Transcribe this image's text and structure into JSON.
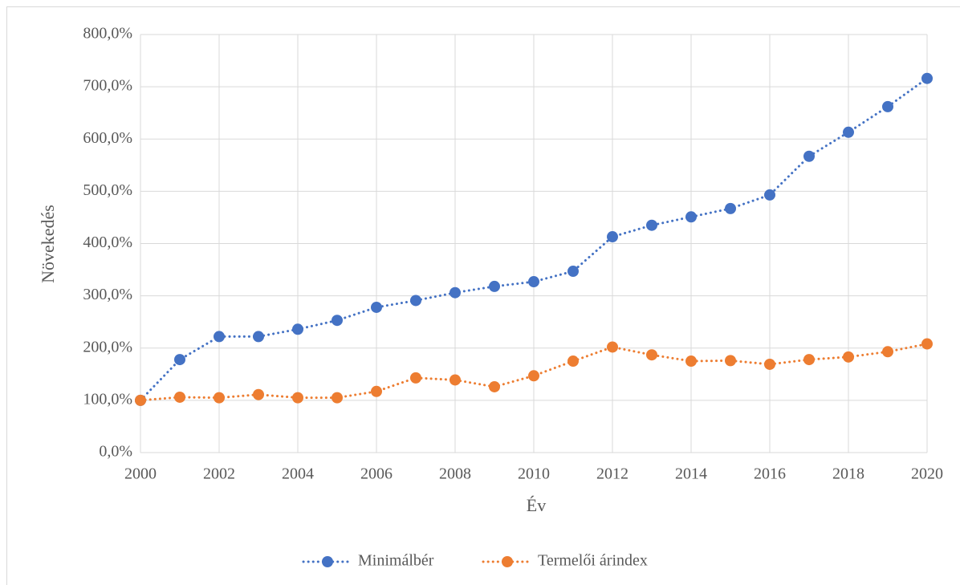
{
  "chart_data": {
    "type": "line",
    "x_label": "Év",
    "y_label": "Növekedés",
    "x": [
      2000,
      2001,
      2002,
      2003,
      2004,
      2005,
      2006,
      2007,
      2008,
      2009,
      2010,
      2011,
      2012,
      2013,
      2014,
      2015,
      2016,
      2017,
      2018,
      2019,
      2020
    ],
    "series": [
      {
        "name": "Minimálbér",
        "color": "#4472c4",
        "values": [
          100,
          178,
          222,
          222,
          236,
          253,
          278,
          291,
          306,
          318,
          327,
          347,
          413,
          435,
          451,
          467,
          493,
          567,
          613,
          662,
          716
        ]
      },
      {
        "name": "Termelői árindex",
        "color": "#ed7d31",
        "values": [
          100,
          106,
          105,
          111,
          105,
          105,
          117,
          143,
          139,
          126,
          147,
          175,
          202,
          187,
          175,
          176,
          169,
          178,
          183,
          193,
          208
        ]
      }
    ],
    "xlim": [
      2000,
      2020
    ],
    "xticks": [
      2000,
      2002,
      2004,
      2006,
      2008,
      2010,
      2012,
      2014,
      2016,
      2018,
      2020
    ],
    "ylim": [
      0,
      800
    ],
    "yticks": [
      {
        "value": 0,
        "label": "0,0%"
      },
      {
        "value": 100,
        "label": "100,0%"
      },
      {
        "value": 200,
        "label": "200,0%"
      },
      {
        "value": 300,
        "label": "300,0%"
      },
      {
        "value": 400,
        "label": "400,0%"
      },
      {
        "value": 500,
        "label": "500,0%"
      },
      {
        "value": 600,
        "label": "600,0%"
      },
      {
        "value": 700,
        "label": "700,0%"
      },
      {
        "value": 800,
        "label": "800,0%"
      }
    ],
    "grid": true,
    "legend": "bottom"
  }
}
